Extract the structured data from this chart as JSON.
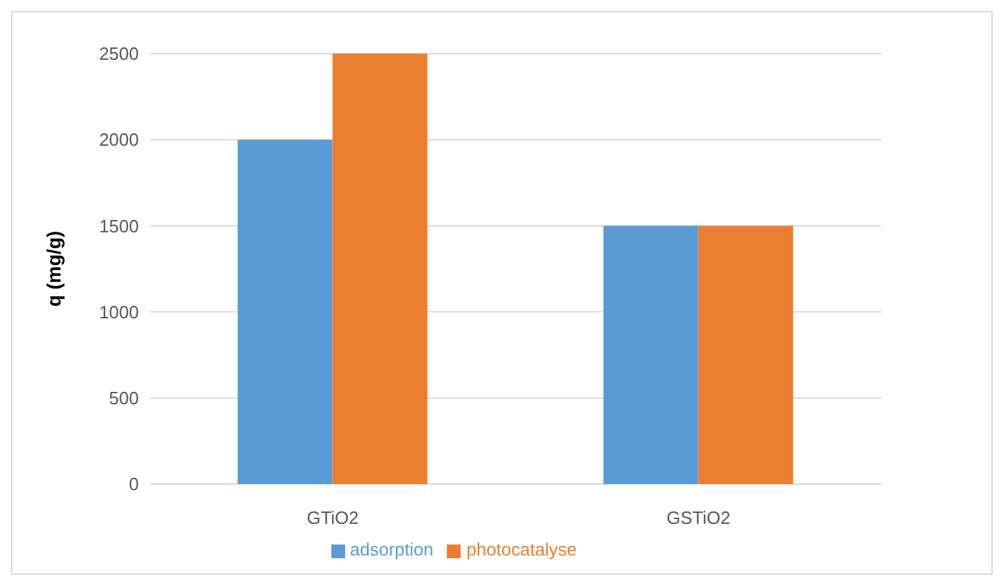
{
  "chart_data": {
    "type": "bar",
    "ylabel": "q (mg/g)",
    "categories": [
      "GTiO2",
      "GSTiO2"
    ],
    "series": [
      {
        "name": "adsorption",
        "color": "#5b9bd5",
        "values": [
          2000,
          1500
        ]
      },
      {
        "name": "photocatalyse",
        "color": "#ed7d31",
        "values": [
          2500,
          1500
        ]
      }
    ],
    "ylim": [
      0,
      2500
    ],
    "yticks": [
      0,
      500,
      1000,
      1500,
      2000,
      2500
    ],
    "grid": "y",
    "legend": "bottom"
  }
}
